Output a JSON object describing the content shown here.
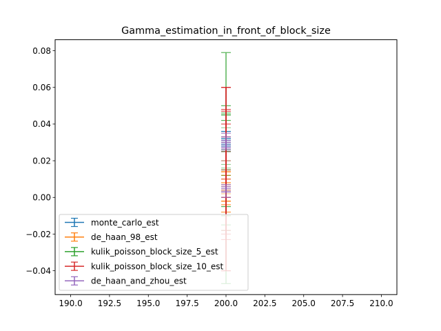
{
  "chart_data": {
    "type": "errorbar",
    "title": "Gamma_estimation_in_front_of_block_size",
    "xlabel": "",
    "ylabel": "",
    "xlim": [
      189.0,
      211.0
    ],
    "ylim": [
      -0.053,
      0.086
    ],
    "x_ticks": [
      190.0,
      192.5,
      195.0,
      197.5,
      200.0,
      202.5,
      205.0,
      207.5,
      210.0
    ],
    "x_tick_labels": [
      "190.0",
      "192.5",
      "195.0",
      "197.5",
      "200.0",
      "202.5",
      "205.0",
      "207.5",
      "210.0"
    ],
    "y_ticks": [
      -0.04,
      -0.02,
      0.0,
      0.02,
      0.04,
      0.06,
      0.08
    ],
    "y_tick_labels": [
      "−0.04",
      "−0.02",
      "0.00",
      "0.02",
      "0.04",
      "0.06",
      "0.08"
    ],
    "grid": false,
    "legend_position": "lower left",
    "series": [
      {
        "name": "monte_carlo_est",
        "color": "#1f77b4",
        "x": [
          200,
          200,
          200,
          200,
          200,
          200,
          200
        ],
        "y": [
          0.03,
          0.028,
          0.031,
          0.032,
          0.029,
          0.027,
          0.033
        ],
        "yerr": [
          0.002,
          0.003,
          0.002,
          0.004,
          0.003,
          0.002,
          0.003
        ]
      },
      {
        "name": "de_haan_98_est",
        "color": "#ff7f0e",
        "x": [
          200,
          200,
          200,
          200,
          200,
          200,
          200
        ],
        "y": [
          0.006,
          0.004,
          0.002,
          0.008,
          0.007,
          0.005,
          0.003
        ],
        "yerr": [
          0.008,
          0.006,
          0.01,
          0.004,
          0.007,
          0.009,
          0.005
        ]
      },
      {
        "name": "kulik_poisson_block_size_5_est",
        "color": "#2ca02c",
        "x": [
          200,
          200,
          200,
          200,
          200,
          200,
          200
        ],
        "y": [
          0.016,
          0.02,
          0.012,
          0.03,
          0.005,
          0.038,
          0.018
        ],
        "yerr": [
          0.063,
          0.025,
          0.03,
          0.015,
          0.02,
          0.012,
          0.028
        ]
      },
      {
        "name": "kulik_poisson_block_size_10_est",
        "color": "#d62728",
        "x": [
          200,
          200,
          200,
          200,
          200,
          200,
          200
        ],
        "y": [
          0.01,
          0.02,
          0.03,
          0.0,
          0.015,
          0.025,
          0.005
        ],
        "yerr": [
          0.05,
          0.04,
          0.03,
          0.04,
          0.033,
          0.022,
          0.028
        ]
      },
      {
        "name": "de_haan_and_zhou_est",
        "color": "#9467bd",
        "x": [
          200,
          200,
          200,
          200,
          200,
          200,
          200
        ],
        "y": [
          0.03,
          0.028,
          0.031,
          0.005,
          0.003,
          0.029,
          0.004
        ],
        "yerr": [
          0.003,
          0.002,
          0.004,
          0.002,
          0.003,
          0.002,
          0.001
        ]
      }
    ]
  }
}
